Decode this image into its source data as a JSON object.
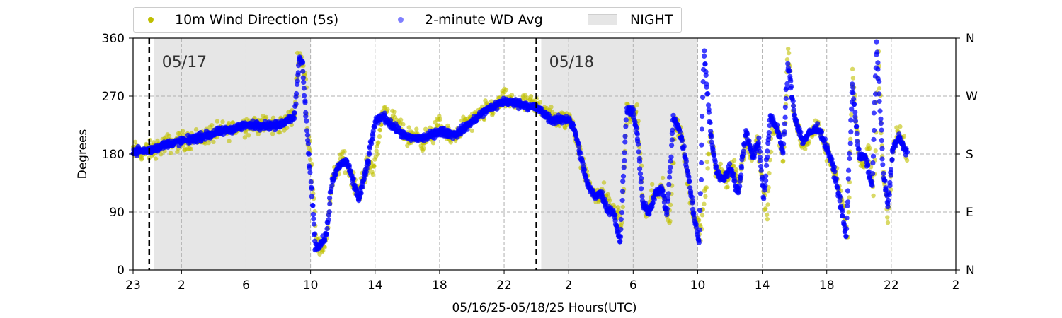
{
  "chart_data": {
    "type": "scatter",
    "title": "",
    "xlabel": "05/16/25-05/18/25  Hours(UTC)",
    "ylabel": "Degrees",
    "x_unit": "hours since 05/16/25 23:00 UTC",
    "xlim": [
      0,
      51
    ],
    "ylim": [
      0,
      360
    ],
    "x_ticks": [
      {
        "x": 0,
        "label": "23"
      },
      {
        "x": 3,
        "label": "2"
      },
      {
        "x": 7,
        "label": "6"
      },
      {
        "x": 11,
        "label": "10"
      },
      {
        "x": 15,
        "label": "14"
      },
      {
        "x": 19,
        "label": "18"
      },
      {
        "x": 23,
        "label": "22"
      },
      {
        "x": 27,
        "label": "2"
      },
      {
        "x": 31,
        "label": "6"
      },
      {
        "x": 35,
        "label": "10"
      },
      {
        "x": 39,
        "label": "14"
      },
      {
        "x": 43,
        "label": "18"
      },
      {
        "x": 47,
        "label": "22"
      },
      {
        "x": 51,
        "label": "2"
      }
    ],
    "y_ticks": [
      0,
      90,
      180,
      270,
      360
    ],
    "y_right_ticks": [
      {
        "y": 0,
        "label": "N"
      },
      {
        "y": 90,
        "label": "E"
      },
      {
        "y": 180,
        "label": "S"
      },
      {
        "y": 270,
        "label": "W"
      },
      {
        "y": 360,
        "label": "N"
      }
    ],
    "grid": true,
    "legend_position": "top-left outside",
    "night_periods": [
      [
        1.3,
        11.0
      ],
      [
        25.3,
        35.0
      ]
    ],
    "day_markers": [
      {
        "x": 1.0,
        "label": "05/17"
      },
      {
        "x": 25.0,
        "label": "05/18"
      }
    ],
    "series": [
      {
        "name": "10m Wind Direction (5s)",
        "color": "#bfbf00",
        "scatter_spread": 22,
        "points": [
          [
            0,
            185
          ],
          [
            0.5,
            182
          ],
          [
            1,
            185
          ],
          [
            2,
            195
          ],
          [
            3,
            200
          ],
          [
            4,
            205
          ],
          [
            5,
            212
          ],
          [
            6,
            218
          ],
          [
            7,
            225
          ],
          [
            7.5,
            228
          ],
          [
            8,
            225
          ],
          [
            9,
            224
          ],
          [
            10.0,
            240
          ],
          [
            10.2,
            320
          ],
          [
            10.4,
            330
          ],
          [
            10.7,
            300
          ],
          [
            10.8,
            210
          ],
          [
            11.0,
            185
          ],
          [
            11.4,
            40
          ],
          [
            11.7,
            30
          ],
          [
            12.0,
            55
          ],
          [
            12.3,
            130
          ],
          [
            12.6,
            155
          ],
          [
            13.0,
            175
          ],
          [
            13.5,
            150
          ],
          [
            14.0,
            120
          ],
          [
            14.5,
            160
          ],
          [
            15.0,
            165
          ],
          [
            15.5,
            250
          ],
          [
            16,
            235
          ],
          [
            16.5,
            220
          ],
          [
            17,
            205
          ],
          [
            17.5,
            210
          ],
          [
            18,
            200
          ],
          [
            18.5,
            210
          ],
          [
            19,
            225
          ],
          [
            19.5,
            205
          ],
          [
            20,
            210
          ],
          [
            20.5,
            225
          ],
          [
            21,
            230
          ],
          [
            21.5,
            240
          ],
          [
            22,
            250
          ],
          [
            22.5,
            255
          ],
          [
            23,
            265
          ],
          [
            23.5,
            260
          ],
          [
            24,
            260
          ],
          [
            24.5,
            255
          ],
          [
            25,
            255
          ],
          [
            25.5,
            250
          ],
          [
            26,
            235
          ],
          [
            26.5,
            232
          ],
          [
            27,
            235
          ],
          [
            27.3,
            225
          ],
          [
            27.7,
            180
          ],
          [
            28,
            150
          ],
          [
            28.4,
            130
          ],
          [
            28.8,
            110
          ],
          [
            29.2,
            120
          ],
          [
            29.6,
            95
          ],
          [
            30.0,
            90
          ],
          [
            30.3,
            70
          ],
          [
            30.6,
            250
          ],
          [
            30.9,
            240
          ],
          [
            31.2,
            245
          ],
          [
            31.4,
            200
          ],
          [
            31.6,
            105
          ],
          [
            31.9,
            85
          ],
          [
            32.2,
            125
          ],
          [
            32.5,
            115
          ],
          [
            32.8,
            130
          ],
          [
            33.0,
            95
          ],
          [
            33.3,
            80
          ],
          [
            33.6,
            230
          ],
          [
            34.0,
            210
          ],
          [
            34.3,
            160
          ],
          [
            34.6,
            100
          ],
          [
            34.9,
            80
          ],
          [
            35.2,
            60
          ],
          [
            35.5,
            130
          ],
          [
            35.8,
            215
          ],
          [
            36.1,
            155
          ],
          [
            36.4,
            150
          ],
          [
            36.8,
            140
          ],
          [
            37.2,
            165
          ],
          [
            37.6,
            130
          ],
          [
            38.0,
            215
          ],
          [
            38.3,
            175
          ],
          [
            38.7,
            205
          ],
          [
            39.0,
            140
          ],
          [
            39.3,
            80
          ],
          [
            39.6,
            225
          ],
          [
            40.0,
            215
          ],
          [
            40.3,
            175
          ],
          [
            40.6,
            340
          ],
          [
            40.9,
            250
          ],
          [
            41.2,
            215
          ],
          [
            41.6,
            190
          ],
          [
            42.0,
            210
          ],
          [
            42.4,
            225
          ],
          [
            42.8,
            200
          ],
          [
            43.2,
            170
          ],
          [
            43.6,
            150
          ],
          [
            44.0,
            95
          ],
          [
            44.3,
            50
          ],
          [
            44.6,
            310
          ],
          [
            45.0,
            175
          ],
          [
            45.3,
            160
          ],
          [
            45.6,
            190
          ],
          [
            45.9,
            120
          ],
          [
            46.2,
            330
          ],
          [
            46.5,
            150
          ],
          [
            46.8,
            80
          ],
          [
            47.1,
            185
          ],
          [
            47.4,
            215
          ],
          [
            47.7,
            195
          ],
          [
            48.0,
            180
          ]
        ]
      },
      {
        "name": "2-minute WD Avg",
        "color": "#0000ff",
        "scatter_spread": 9,
        "points": [
          [
            0,
            185
          ],
          [
            1,
            185
          ],
          [
            2,
            195
          ],
          [
            3,
            200
          ],
          [
            4,
            205
          ],
          [
            5,
            212
          ],
          [
            6,
            218
          ],
          [
            7,
            225
          ],
          [
            8,
            225
          ],
          [
            9,
            224
          ],
          [
            10.0,
            240
          ],
          [
            10.3,
            330
          ],
          [
            10.5,
            320
          ],
          [
            10.8,
            210
          ],
          [
            11.3,
            35
          ],
          [
            11.6,
            40
          ],
          [
            12.0,
            55
          ],
          [
            12.3,
            135
          ],
          [
            12.7,
            160
          ],
          [
            13.2,
            170
          ],
          [
            13.6,
            140
          ],
          [
            14.0,
            110
          ],
          [
            14.5,
            160
          ],
          [
            15.0,
            230
          ],
          [
            15.5,
            240
          ],
          [
            16,
            225
          ],
          [
            17,
            205
          ],
          [
            18,
            205
          ],
          [
            19,
            215
          ],
          [
            20,
            210
          ],
          [
            21,
            230
          ],
          [
            22,
            250
          ],
          [
            23,
            262
          ],
          [
            24,
            258
          ],
          [
            25,
            252
          ],
          [
            26,
            232
          ],
          [
            27,
            235
          ],
          [
            27.4,
            215
          ],
          [
            27.8,
            170
          ],
          [
            28.2,
            130
          ],
          [
            28.6,
            115
          ],
          [
            29.0,
            120
          ],
          [
            29.4,
            95
          ],
          [
            29.8,
            90
          ],
          [
            30.2,
            40
          ],
          [
            30.6,
            250
          ],
          [
            31.0,
            245
          ],
          [
            31.3,
            200
          ],
          [
            31.6,
            100
          ],
          [
            32.0,
            90
          ],
          [
            32.4,
            120
          ],
          [
            32.8,
            125
          ],
          [
            33.1,
            85
          ],
          [
            33.5,
            240
          ],
          [
            34.0,
            205
          ],
          [
            34.4,
            150
          ],
          [
            34.8,
            80
          ],
          [
            35.1,
            40
          ],
          [
            35.4,
            340
          ],
          [
            35.8,
            210
          ],
          [
            36.2,
            150
          ],
          [
            36.6,
            140
          ],
          [
            37.0,
            160
          ],
          [
            37.5,
            120
          ],
          [
            38.0,
            215
          ],
          [
            38.4,
            175
          ],
          [
            38.8,
            200
          ],
          [
            39.1,
            110
          ],
          [
            39.5,
            240
          ],
          [
            40.0,
            215
          ],
          [
            40.3,
            180
          ],
          [
            40.6,
            320
          ],
          [
            41.0,
            240
          ],
          [
            41.5,
            200
          ],
          [
            42.0,
            215
          ],
          [
            42.5,
            220
          ],
          [
            43.0,
            190
          ],
          [
            43.4,
            160
          ],
          [
            43.8,
            110
          ],
          [
            44.2,
            50
          ],
          [
            44.6,
            290
          ],
          [
            45.0,
            175
          ],
          [
            45.4,
            175
          ],
          [
            45.8,
            130
          ],
          [
            46.1,
            350
          ],
          [
            46.5,
            150
          ],
          [
            46.8,
            100
          ],
          [
            47.1,
            190
          ],
          [
            47.5,
            205
          ],
          [
            48.0,
            180
          ]
        ]
      }
    ]
  },
  "legend": {
    "entries": [
      {
        "label": "10m Wind Direction (5s)",
        "kind": "dot",
        "color": "#bfbf00"
      },
      {
        "label": "2-minute WD Avg",
        "kind": "dot",
        "color": "#7f7fff"
      },
      {
        "label": "NIGHT",
        "kind": "rect",
        "color": "#e6e6e6"
      }
    ]
  }
}
